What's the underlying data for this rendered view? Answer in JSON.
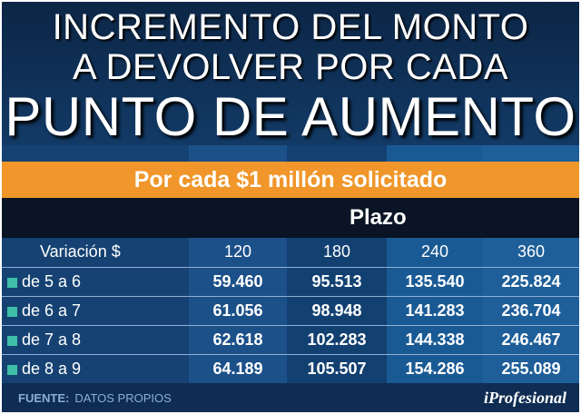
{
  "headline": {
    "line1": "INCREMENTO DEL MONTO",
    "line2": "A DEVOLVER POR CADA",
    "line3": "PUNTO DE AUMENTO"
  },
  "subtitle": "Por cada $1 millón solicitado",
  "term_label": "Plazo",
  "table": {
    "first_header": "Variación $",
    "terms": [
      "120",
      "180",
      "240",
      "360"
    ],
    "rows": [
      {
        "range": "de 5 a 6",
        "values": [
          "59.460",
          "95.513",
          "135.540",
          "225.824"
        ]
      },
      {
        "range": "de 6 a 7",
        "values": [
          "61.056",
          "98.948",
          "141.283",
          "236.704"
        ]
      },
      {
        "range": "de 7 a 8",
        "values": [
          "62.618",
          "102.283",
          "144.338",
          "246.467"
        ]
      },
      {
        "range": "de 8 a 9",
        "values": [
          "64.189",
          "105.507",
          "154.286",
          "255.089"
        ]
      }
    ]
  },
  "footer": {
    "source_label": "FUENTE:",
    "source_text": "DATOS PROPIOS",
    "brand": "iProfesional"
  },
  "colors": {
    "background": "#0f2d52",
    "accent_orange": "#f0962a",
    "header_black": "#0a1424",
    "bullet_teal": "#3fbfa8"
  }
}
